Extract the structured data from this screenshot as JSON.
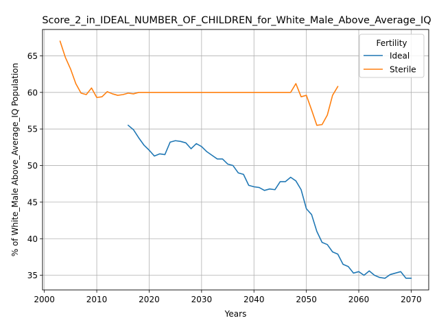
{
  "chart_data": {
    "type": "line",
    "title": "Score_2_in_IDEAL_NUMBER_OF_CHILDREN_for_White_Male_Above_Average_IQ",
    "xlabel": "Years",
    "ylabel": "% of White_Male Above_Average_IQ Population",
    "xlim": [
      1999.65,
      2073.35
    ],
    "ylim": [
      33.0,
      68.6
    ],
    "xticks": [
      2000,
      2010,
      2020,
      2030,
      2040,
      2050,
      2060,
      2070
    ],
    "yticks": [
      35,
      40,
      45,
      50,
      55,
      60,
      65
    ],
    "grid": true,
    "legend": {
      "title": "Fertility",
      "placement": "top-right"
    },
    "series": [
      {
        "name": "Ideal",
        "color": "#1f77b4",
        "x": [
          2016,
          2017,
          2018,
          2019,
          2020,
          2021,
          2022,
          2023,
          2024,
          2025,
          2026,
          2027,
          2028,
          2029,
          2030,
          2031,
          2032,
          2033,
          2034,
          2035,
          2036,
          2037,
          2038,
          2039,
          2040,
          2041,
          2042,
          2043,
          2044,
          2045,
          2046,
          2047,
          2048,
          2049,
          2050,
          2051,
          2052,
          2053,
          2054,
          2055,
          2056,
          2057,
          2058,
          2059,
          2060,
          2061,
          2062,
          2063,
          2064,
          2065,
          2066,
          2067,
          2068,
          2069,
          2070
        ],
        "y": [
          55.5,
          54.9,
          53.8,
          52.8,
          52.1,
          51.3,
          51.6,
          51.5,
          53.2,
          53.4,
          53.3,
          53.1,
          52.3,
          53.0,
          52.6,
          51.9,
          51.4,
          50.9,
          50.9,
          50.2,
          50.0,
          49.0,
          48.8,
          47.3,
          47.1,
          47.0,
          46.6,
          46.8,
          46.7,
          47.8,
          47.8,
          48.4,
          47.9,
          46.7,
          44.1,
          43.3,
          41.0,
          39.5,
          39.2,
          38.2,
          37.9,
          36.5,
          36.2,
          35.3,
          35.5,
          35.0,
          35.6,
          35.0,
          34.7,
          34.6,
          35.1,
          35.3,
          35.5,
          34.6,
          34.6
        ]
      },
      {
        "name": "Sterile",
        "color": "#ff7f0e",
        "x": [
          2003,
          2004,
          2005,
          2006,
          2007,
          2008,
          2009,
          2010,
          2011,
          2012,
          2013,
          2014,
          2015,
          2016,
          2017,
          2018,
          2019,
          2020,
          2021,
          2022,
          2023,
          2024,
          2025,
          2026,
          2027,
          2028,
          2029,
          2030,
          2031,
          2032,
          2033,
          2034,
          2035,
          2036,
          2037,
          2038,
          2039,
          2040,
          2041,
          2042,
          2043,
          2044,
          2045,
          2046,
          2047,
          2048,
          2049,
          2050,
          2051,
          2052,
          2053,
          2054,
          2055,
          2056
        ],
        "y": [
          67.0,
          64.8,
          63.2,
          61.2,
          59.9,
          59.7,
          60.6,
          59.3,
          59.4,
          60.1,
          59.8,
          59.6,
          59.7,
          59.9,
          59.8,
          60.0,
          60.0,
          60.0,
          60.0,
          60.0,
          60.0,
          60.0,
          60.0,
          60.0,
          60.0,
          60.0,
          60.0,
          60.0,
          60.0,
          60.0,
          60.0,
          60.0,
          60.0,
          60.0,
          60.0,
          60.0,
          60.0,
          60.0,
          60.0,
          60.0,
          60.0,
          60.0,
          60.0,
          60.0,
          60.0,
          61.2,
          59.4,
          59.6,
          57.6,
          55.5,
          55.6,
          56.9,
          59.6,
          60.8
        ]
      }
    ]
  }
}
